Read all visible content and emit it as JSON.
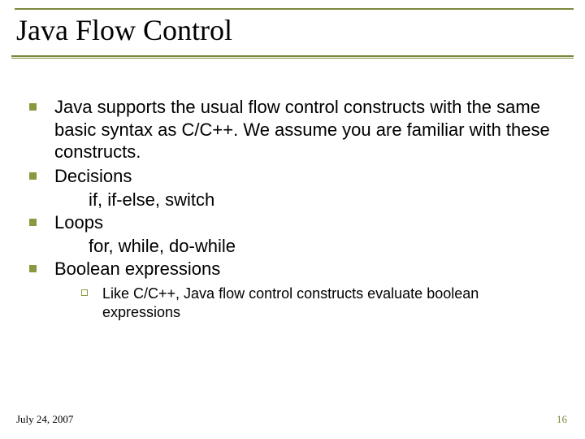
{
  "colors": {
    "rule": "#7a8a3a",
    "bullet_fill": "#89993f",
    "bullet_outline": "#89993f",
    "page_num": "#7a8a3a"
  },
  "title": "Java Flow Control",
  "bullets": [
    {
      "text": "Java supports the usual flow control constructs with the same basic syntax as C/C++.  We assume you are familiar with these constructs."
    },
    {
      "text": "Decisions",
      "sub": "if, if-else, switch"
    },
    {
      "text": "Loops",
      "sub": "for, while, do-while"
    },
    {
      "text": "Boolean expressions",
      "children": [
        {
          "text": "Like C/C++, Java flow control constructs evaluate boolean expressions"
        }
      ]
    }
  ],
  "footer": {
    "date": "July 24, 2007",
    "page": "16"
  }
}
